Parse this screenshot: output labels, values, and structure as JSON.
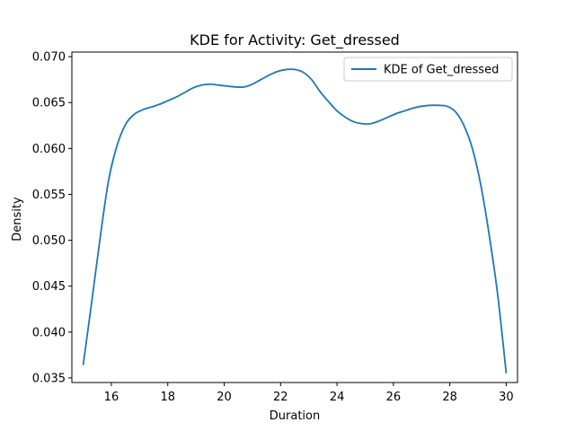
{
  "chart_data": {
    "type": "line",
    "title": "KDE for Activity: Get_dressed",
    "xlabel": "Duration",
    "ylabel": "Density",
    "xlim": [
      14.6,
      30.4
    ],
    "ylim": [
      0.0345,
      0.0705
    ],
    "xticks": [
      16,
      18,
      20,
      22,
      24,
      26,
      28,
      30
    ],
    "yticks": [
      0.035,
      0.04,
      0.045,
      0.05,
      0.055,
      0.06,
      0.065,
      0.07
    ],
    "xtick_labels": [
      "16",
      "18",
      "20",
      "22",
      "24",
      "26",
      "28",
      "30"
    ],
    "ytick_labels": [
      "0.035",
      "0.040",
      "0.045",
      "0.050",
      "0.055",
      "0.060",
      "0.065",
      "0.070"
    ],
    "grid": false,
    "legend_position": "top-right",
    "series": [
      {
        "name": "KDE of Get_dressed",
        "color": "#1f77b4",
        "x": [
          15.0,
          15.3,
          15.6,
          15.9,
          16.2,
          16.5,
          16.8,
          17.1,
          17.4,
          17.7,
          18.0,
          18.3,
          18.6,
          18.9,
          19.2,
          19.5,
          19.8,
          20.1,
          20.4,
          20.7,
          21.0,
          21.3,
          21.6,
          21.9,
          22.2,
          22.5,
          22.8,
          23.1,
          23.4,
          23.7,
          24.0,
          24.3,
          24.6,
          24.9,
          25.2,
          25.5,
          25.8,
          26.1,
          26.4,
          26.7,
          27.0,
          27.3,
          27.6,
          27.9,
          28.2,
          28.5,
          28.8,
          29.1,
          29.4,
          29.7,
          30.0
        ],
        "y": [
          0.0364,
          0.0432,
          0.0502,
          0.0565,
          0.0603,
          0.0626,
          0.0637,
          0.0642,
          0.0645,
          0.0648,
          0.0652,
          0.0656,
          0.0661,
          0.0666,
          0.0669,
          0.067,
          0.0669,
          0.0668,
          0.0667,
          0.0667,
          0.067,
          0.0675,
          0.068,
          0.0684,
          0.0686,
          0.0686,
          0.0683,
          0.0675,
          0.0662,
          0.0651,
          0.0641,
          0.0634,
          0.0629,
          0.0627,
          0.0627,
          0.063,
          0.0634,
          0.0638,
          0.0641,
          0.0644,
          0.0646,
          0.0647,
          0.0647,
          0.0646,
          0.064,
          0.0625,
          0.06,
          0.056,
          0.0505,
          0.044,
          0.0355
        ]
      }
    ]
  }
}
